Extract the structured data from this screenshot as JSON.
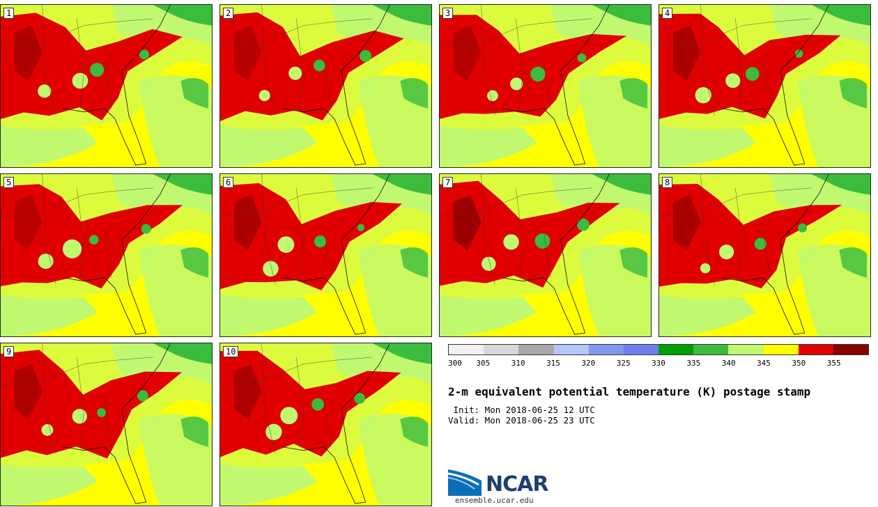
{
  "title": "2-m equivalent potential temperature (K) postage stamp",
  "init": " Init: Mon 2018-06-25 12 UTC",
  "valid": "Valid: Mon 2018-06-25 23 UTC",
  "org": "NCAR",
  "site": "ensemble.ucar.edu",
  "stamps": [
    "1",
    "2",
    "3",
    "4",
    "5",
    "6",
    "7",
    "8",
    "9",
    "10"
  ],
  "colorbar": {
    "ticks": [
      "300",
      "305",
      "310",
      "315",
      "320",
      "325",
      "330",
      "335",
      "340",
      "345",
      "350",
      "355"
    ],
    "colors": [
      "#f0f0f0",
      "#d8d8d8",
      "#a8a8a8",
      "#b4c8f8",
      "#8098f0",
      "#6c7ef0",
      "#00a000",
      "#3cbc3c",
      "#c0f870",
      "#ffff00",
      "#e00000",
      "#880000"
    ]
  }
}
